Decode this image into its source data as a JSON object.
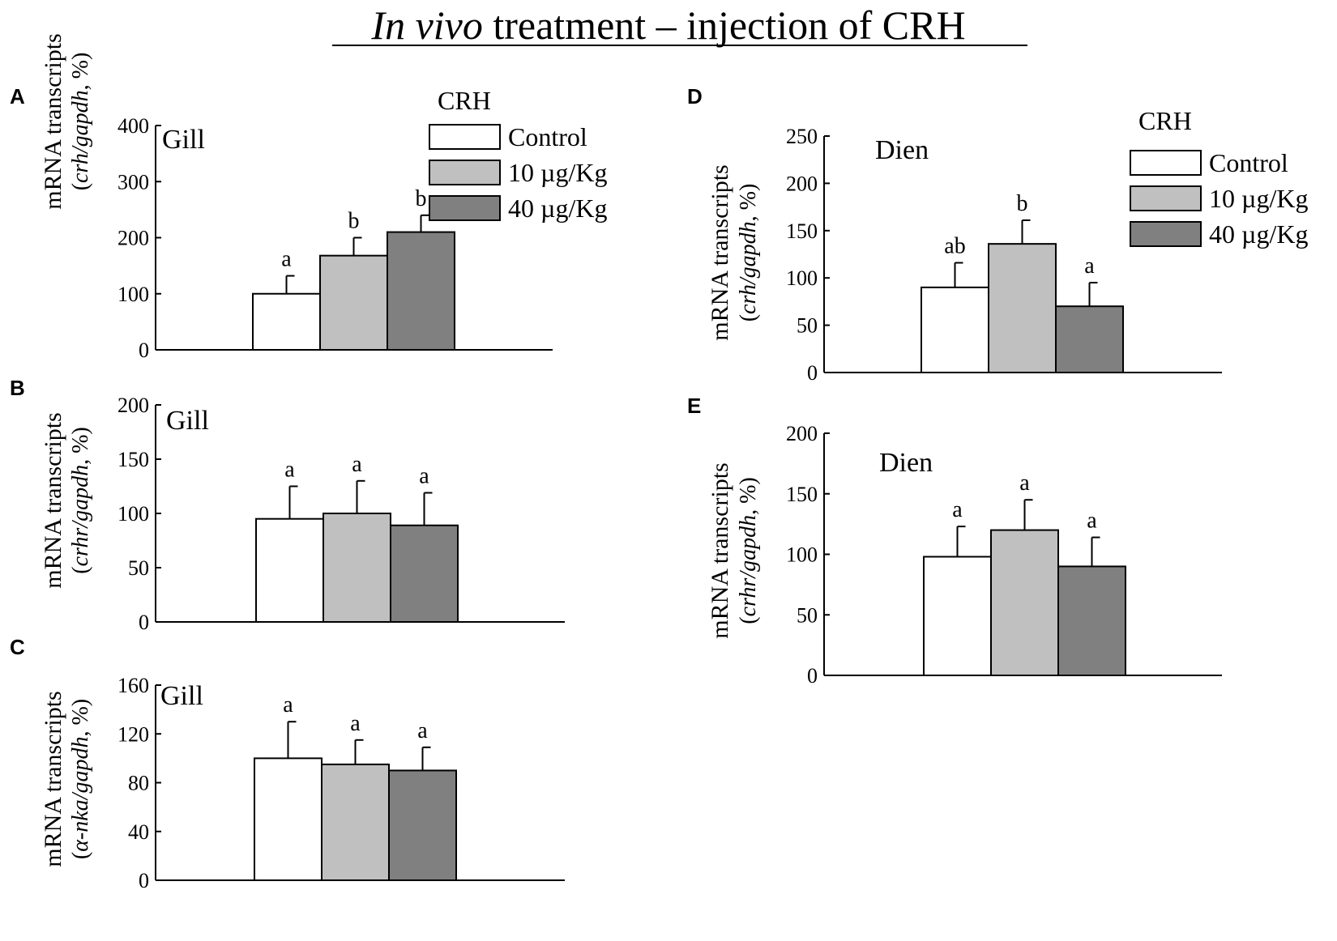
{
  "figure_title": {
    "italic": "In vivo",
    "rest": " treatment – injection of CRH"
  },
  "colors": {
    "control": "#ffffff",
    "low": "#c0c0c0",
    "high": "#808080",
    "stroke": "#000000"
  },
  "legend": {
    "title": "CRH",
    "entries": [
      {
        "label": "Control",
        "color": "#ffffff"
      },
      {
        "label": "10 µg/Kg",
        "color": "#c0c0c0"
      },
      {
        "label": "40 µg/Kg",
        "color": "#808080"
      }
    ]
  },
  "chart_data": [
    {
      "panel": "A",
      "type": "bar",
      "tissue": "Gill",
      "ylabel_main": "mRNA transcripts",
      "ylabel_italic": "crh/gapdh",
      "ylabel_suffix": ", %)",
      "ylim": [
        0,
        400
      ],
      "yticks": [
        0,
        100,
        200,
        300,
        400
      ],
      "categories": [
        "Control",
        "10 µg/Kg",
        "40 µg/Kg"
      ],
      "values": [
        100,
        168,
        210
      ],
      "errors": [
        32,
        32,
        30
      ],
      "letters": [
        "a",
        "b",
        "b"
      ]
    },
    {
      "panel": "B",
      "type": "bar",
      "tissue": "Gill",
      "ylabel_main": "mRNA transcripts",
      "ylabel_italic": "crhr/gapdh",
      "ylabel_suffix": ", %)",
      "ylim": [
        0,
        200
      ],
      "yticks": [
        0,
        50,
        100,
        150,
        200
      ],
      "categories": [
        "Control",
        "10 µg/Kg",
        "40 µg/Kg"
      ],
      "values": [
        95,
        100,
        89
      ],
      "errors": [
        30,
        30,
        30
      ],
      "letters": [
        "a",
        "a",
        "a"
      ]
    },
    {
      "panel": "C",
      "type": "bar",
      "tissue": "Gill",
      "ylabel_main": "mRNA transcripts",
      "ylabel_italic": "α-nka/gapdh",
      "ylabel_suffix": ", %)",
      "ylim": [
        0,
        160
      ],
      "yticks": [
        0,
        40,
        80,
        120,
        160
      ],
      "categories": [
        "Control",
        "10 µg/Kg",
        "40 µg/Kg"
      ],
      "values": [
        100,
        95,
        90
      ],
      "errors": [
        30,
        20,
        19
      ],
      "letters": [
        "a",
        "a",
        "a"
      ]
    },
    {
      "panel": "D",
      "type": "bar",
      "tissue": "Dien",
      "ylabel_main": "mRNA transcripts",
      "ylabel_italic": "crh/gapdh",
      "ylabel_suffix": ", %)",
      "ylim": [
        0,
        250
      ],
      "yticks": [
        0,
        50,
        100,
        150,
        200,
        250
      ],
      "categories": [
        "Control",
        "10 µg/Kg",
        "40 µg/Kg"
      ],
      "values": [
        90,
        136,
        70
      ],
      "errors": [
        26,
        25,
        25
      ],
      "letters": [
        "ab",
        "b",
        "a"
      ]
    },
    {
      "panel": "E",
      "type": "bar",
      "tissue": "Dien",
      "ylabel_main": "mRNA transcripts",
      "ylabel_italic": "crhr/gapdh",
      "ylabel_suffix": ", %)",
      "ylim": [
        0,
        200
      ],
      "yticks": [
        0,
        50,
        100,
        150,
        200
      ],
      "categories": [
        "Control",
        "10 µg/Kg",
        "40 µg/Kg"
      ],
      "values": [
        98,
        120,
        90
      ],
      "errors": [
        25,
        25,
        24
      ],
      "letters": [
        "a",
        "a",
        "a"
      ]
    }
  ]
}
